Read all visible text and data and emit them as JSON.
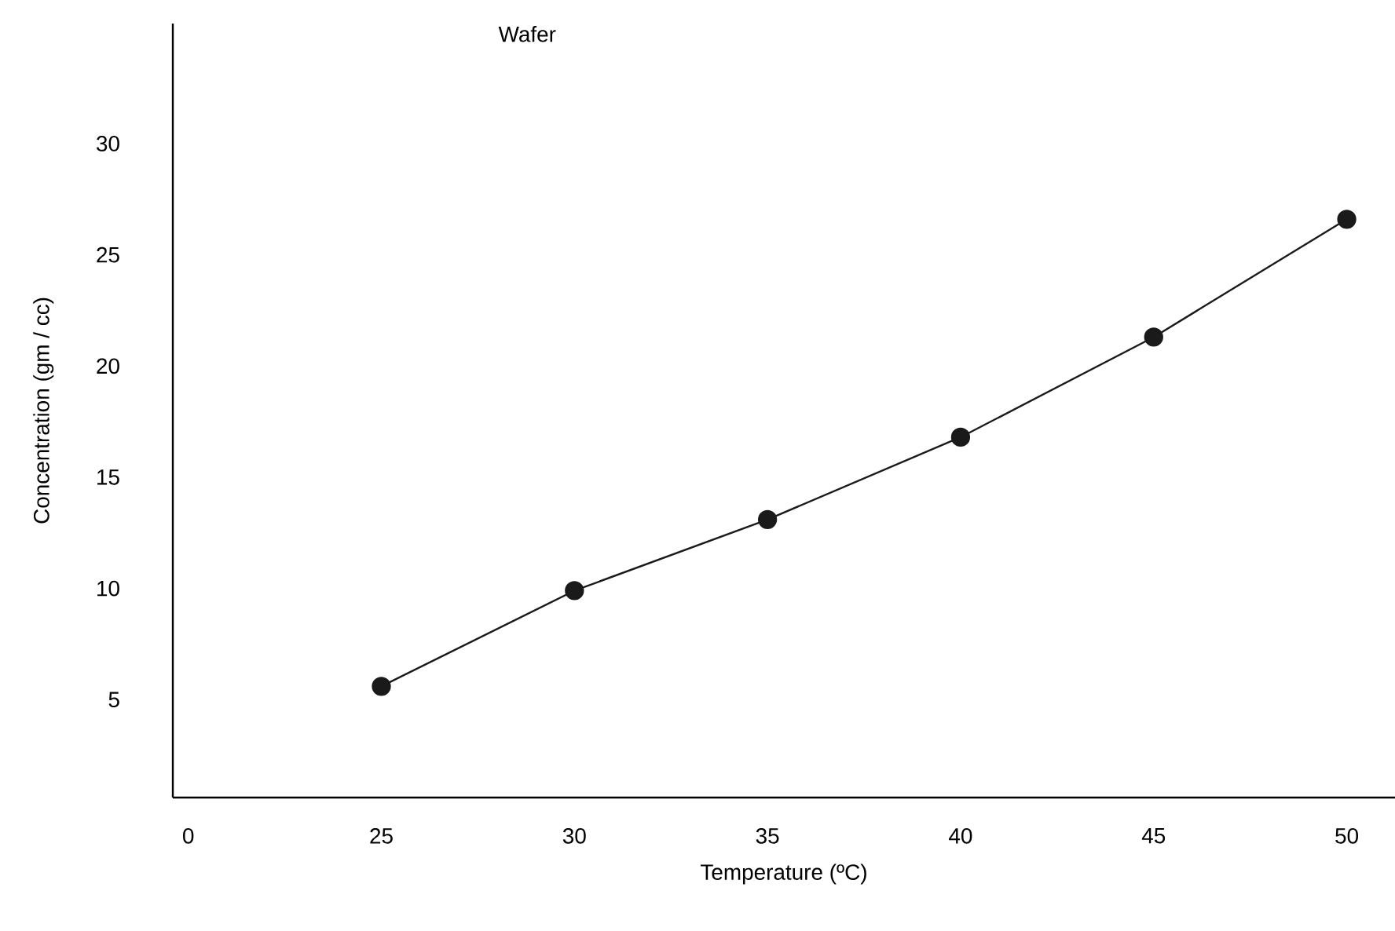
{
  "chart_data": {
    "type": "line",
    "title": "Wafer",
    "xlabel": "Temperature (ºC)",
    "ylabel": "Concentration (gm / cc)",
    "categories": [
      "0",
      "25",
      "30",
      "35",
      "40",
      "45",
      "50"
    ],
    "values": [
      null,
      5.6,
      9.9,
      13.1,
      16.8,
      21.3,
      26.6
    ],
    "color": "#1a1a1a",
    "marker": "circle",
    "line_style": "solid",
    "ylim": [
      0.6,
      35.4
    ],
    "yticks": [
      5,
      10,
      15,
      20,
      25,
      30
    ]
  }
}
